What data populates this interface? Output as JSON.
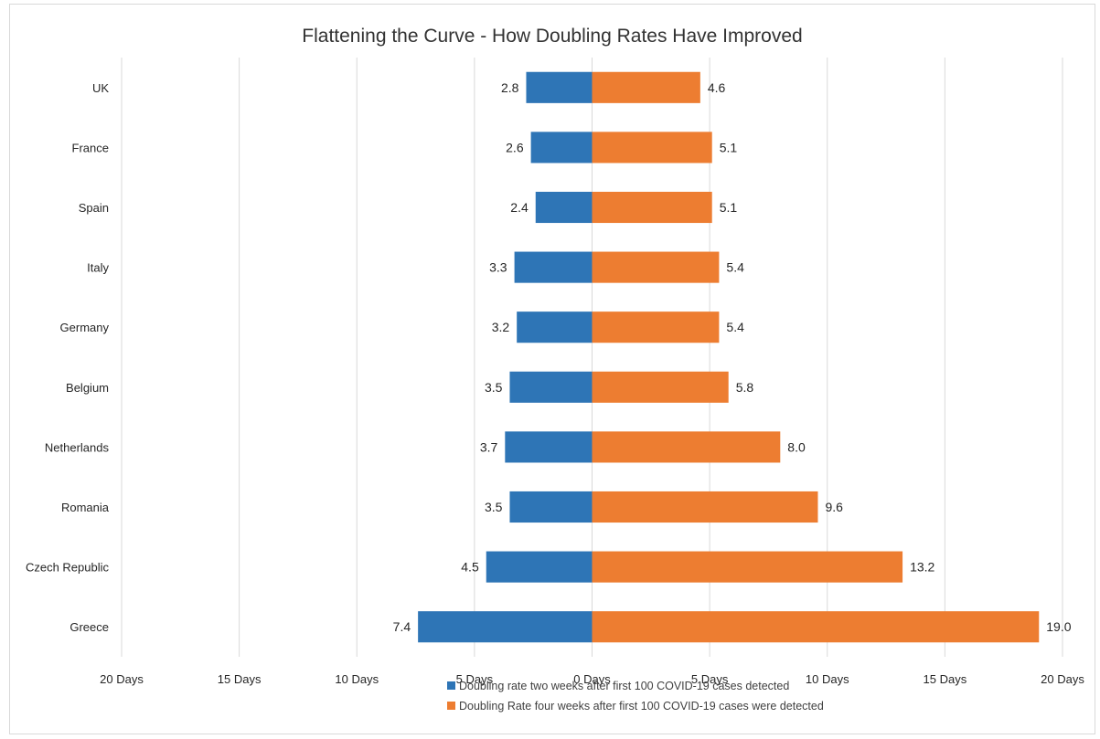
{
  "chart_data": {
    "type": "bar",
    "orientation": "horizontal",
    "title": "Flattening the Curve - How Doubling Rates Have Improved",
    "categories": [
      "UK",
      "France",
      "Spain",
      "Italy",
      "Germany",
      "Belgium",
      "Netherlands",
      "Romania",
      "Czech Republic",
      "Greece"
    ],
    "series": [
      {
        "name": "Doubling rate two weeks after first 100 COVID-19 cases detected",
        "color": "#2e75b6",
        "direction": "left",
        "values": [
          2.8,
          2.6,
          2.4,
          3.3,
          3.2,
          3.5,
          3.7,
          3.5,
          4.5,
          7.4
        ],
        "labels": [
          "2.8",
          "2.6",
          "2.4",
          "3.3",
          "3.2",
          "3.5",
          "3.7",
          "3.5",
          "4.5",
          "7.4"
        ]
      },
      {
        "name": "Doubling Rate four weeks after first 100 COVID-19 cases were detected",
        "color": "#ed7d31",
        "direction": "right",
        "values": [
          4.6,
          5.1,
          5.1,
          5.4,
          5.4,
          5.8,
          8.0,
          9.6,
          13.2,
          19.0
        ],
        "labels": [
          "4.6",
          "5.1",
          "5.1",
          "5.4",
          "5.4",
          "5.8",
          "8.0",
          "9.6",
          "13.2",
          "19.0"
        ]
      }
    ],
    "xlim": [
      -20,
      20
    ],
    "ticks": [
      {
        "value": -20,
        "label": "20 Days"
      },
      {
        "value": -15,
        "label": "15 Days"
      },
      {
        "value": -10,
        "label": "10 Days"
      },
      {
        "value": -5,
        "label": "5 Days"
      },
      {
        "value": 0,
        "label": "0 Days"
      },
      {
        "value": 5,
        "label": "5 Days"
      },
      {
        "value": 10,
        "label": "10 Days"
      },
      {
        "value": 15,
        "label": "15 Days"
      },
      {
        "value": 20,
        "label": "20 Days"
      }
    ],
    "grid": true,
    "legend_position": "bottom"
  }
}
